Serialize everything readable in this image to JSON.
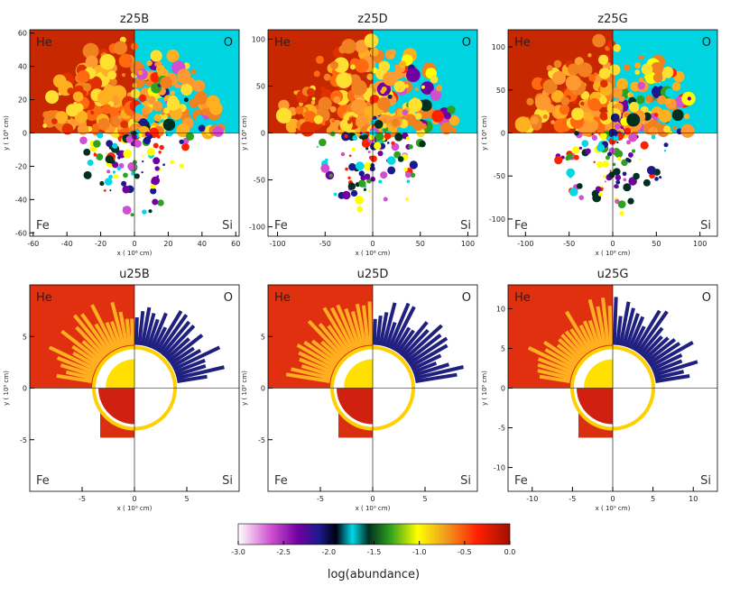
{
  "panels": [
    {
      "title": "z25B",
      "xlabel": "x ( 10⁸ cm)",
      "ylabel": "y ( 10⁸ cm)",
      "labels": [
        "He",
        "O",
        "Fe",
        "Si"
      ],
      "xlim": [
        -62,
        62
      ],
      "ylim": [
        -62,
        62
      ],
      "xticks": [
        -60,
        -40,
        -20,
        0,
        20,
        40,
        60
      ],
      "yticks": [
        -60,
        -40,
        -20,
        0,
        20,
        40,
        60
      ]
    },
    {
      "title": "z25D",
      "xlabel": "x ( 10⁸ cm)",
      "ylabel": "y ( 10⁸ cm)",
      "labels": [
        "He",
        "O",
        "Fe",
        "Si"
      ],
      "xlim": [
        -110,
        110
      ],
      "ylim": [
        -110,
        110
      ],
      "xticks": [
        -100,
        -50,
        0,
        50,
        100
      ],
      "yticks": [
        -100,
        -50,
        0,
        50,
        100
      ]
    },
    {
      "title": "z25G",
      "xlabel": "x ( 10⁸ cm)",
      "ylabel": "y ( 10⁸ cm)",
      "labels": [
        "He",
        "O",
        "Fe",
        "Si"
      ],
      "xlim": [
        -120,
        120
      ],
      "ylim": [
        -120,
        120
      ],
      "xticks": [
        -100,
        -50,
        0,
        50,
        100
      ],
      "yticks": [
        -100,
        -50,
        0,
        50,
        100
      ]
    },
    {
      "title": "u25B",
      "xlabel": "x ( 10⁹ cm)",
      "ylabel": "y ( 10⁹ cm)",
      "labels": [
        "He",
        "O",
        "Fe",
        "Si"
      ],
      "xlim": [
        -10,
        10
      ],
      "ylim": [
        -10,
        10
      ],
      "xticks": [
        -5,
        0,
        5
      ],
      "yticks": [
        -5,
        0,
        5
      ]
    },
    {
      "title": "u25D",
      "xlabel": "x ( 10⁹ cm)",
      "ylabel": "y ( 10⁹ cm)",
      "labels": [
        "He",
        "O",
        "Fe",
        "Si"
      ],
      "xlim": [
        -10,
        10
      ],
      "ylim": [
        -10,
        10
      ],
      "xticks": [
        -5,
        0,
        5
      ],
      "yticks": [
        -5,
        0,
        5
      ]
    },
    {
      "title": "u25G",
      "xlabel": "x ( 10⁹ cm)",
      "ylabel": "y ( 10⁹ cm)",
      "labels": [
        "He",
        "O",
        "Fe",
        "Si"
      ],
      "xlim": [
        -13,
        13
      ],
      "ylim": [
        -13,
        13
      ],
      "xticks": [
        -10,
        -5,
        0,
        5,
        10
      ],
      "yticks": [
        -10,
        -5,
        0,
        5,
        10
      ]
    }
  ],
  "colorbar": {
    "label": "log(abundance)",
    "lim": [
      -3,
      0
    ],
    "ticks": [
      {
        "value": -3,
        "label": "-3.0"
      },
      -2.5,
      {
        "value": -2,
        "label": "-2.0"
      },
      -1.5,
      {
        "value": -1,
        "label": "-1.0"
      },
      -0.5,
      {
        "value": 0,
        "label": "0.0"
      }
    ]
  }
}
